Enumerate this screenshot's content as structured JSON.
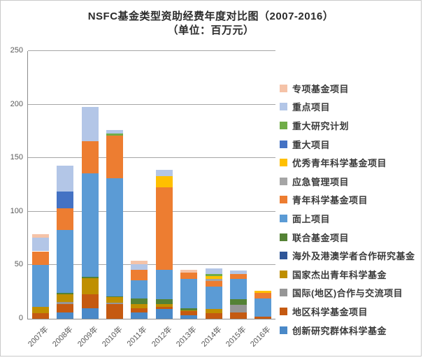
{
  "title": {
    "line1": "NSFC基金类型资助经费年度对比图（2007-2016）",
    "line2": "（单位：百万元）"
  },
  "chart_data": {
    "type": "bar",
    "stacked": true,
    "title": "NSFC基金类型资助经费年度对比图（2007-2016）",
    "subtitle": "（单位：百万元）",
    "ylabel": "百万元",
    "xlabel": "",
    "ylim": [
      0,
      250
    ],
    "y_ticks": [
      0,
      50,
      100,
      150,
      200,
      250
    ],
    "grid": "horizontal",
    "legend_position": "right",
    "legend_order": "top_of_legend_is_top_of_stack",
    "categories": [
      "2007年",
      "2008年",
      "2009年",
      "2010年",
      "2011年",
      "2012年",
      "2013年",
      "2014年",
      "2015年",
      "2016年"
    ],
    "series": [
      {
        "name": "创新研究群体科学基金",
        "color": "#4A89C8",
        "values": [
          0,
          6,
          10,
          0,
          6,
          9,
          3,
          0,
          0,
          0
        ]
      },
      {
        "name": "地区科学基金项目",
        "color": "#C55A11",
        "values": [
          5,
          8,
          13,
          14,
          4,
          2,
          4,
          5,
          6,
          2
        ]
      },
      {
        "name": "国际(地区)合作与交流项目",
        "color": "#969696",
        "values": [
          0,
          2,
          0,
          1,
          0,
          0,
          0,
          0,
          7,
          0
        ]
      },
      {
        "name": "国家杰出青年科学基金",
        "color": "#BF8F00",
        "values": [
          6,
          7,
          15,
          5,
          4,
          3,
          1,
          4,
          0,
          0
        ]
      },
      {
        "name": "海外及港澳学者合作研究基金",
        "color": "#2F5597",
        "values": [
          0,
          0,
          0,
          0,
          0,
          0,
          0,
          0,
          0,
          0
        ]
      },
      {
        "name": "联合基金项目",
        "color": "#548235",
        "values": [
          0,
          1,
          1,
          1,
          5,
          4,
          2,
          0,
          5,
          0
        ]
      },
      {
        "name": "面上项目",
        "color": "#5B9BD5",
        "values": [
          39,
          59,
          97,
          110,
          17,
          28,
          27,
          21,
          19,
          17
        ]
      },
      {
        "name": "青年科学基金项目",
        "color": "#ED7D31",
        "values": [
          13,
          20,
          30,
          40,
          10,
          77,
          6,
          5,
          5,
          5
        ]
      },
      {
        "name": "应急管理项目",
        "color": "#A5A5A5",
        "values": [
          0,
          0,
          0,
          0,
          0,
          0,
          0,
          2,
          0,
          0
        ]
      },
      {
        "name": "优秀青年科学基金项目",
        "color": "#FFC000",
        "values": [
          0,
          0,
          0,
          0,
          0,
          10,
          0,
          3,
          0,
          2
        ]
      },
      {
        "name": "重大项目",
        "color": "#4472C4",
        "values": [
          0,
          16,
          0,
          0,
          0,
          0,
          0,
          0,
          0,
          0
        ]
      },
      {
        "name": "重大研究计划",
        "color": "#70AD47",
        "values": [
          0,
          0,
          0,
          2,
          0,
          0,
          0,
          2,
          0,
          0
        ]
      },
      {
        "name": "重点项目",
        "color": "#B3C6E7",
        "values": [
          13,
          24,
          32,
          3,
          5,
          6,
          0,
          5,
          3,
          0
        ]
      },
      {
        "name": "专项基金项目",
        "color": "#F5C3A8",
        "values": [
          3,
          0,
          0,
          0,
          3,
          0,
          3,
          0,
          0,
          0
        ]
      }
    ],
    "totals": [
      79,
      143,
      198,
      176,
      54,
      139,
      46,
      47,
      45,
      26
    ]
  }
}
